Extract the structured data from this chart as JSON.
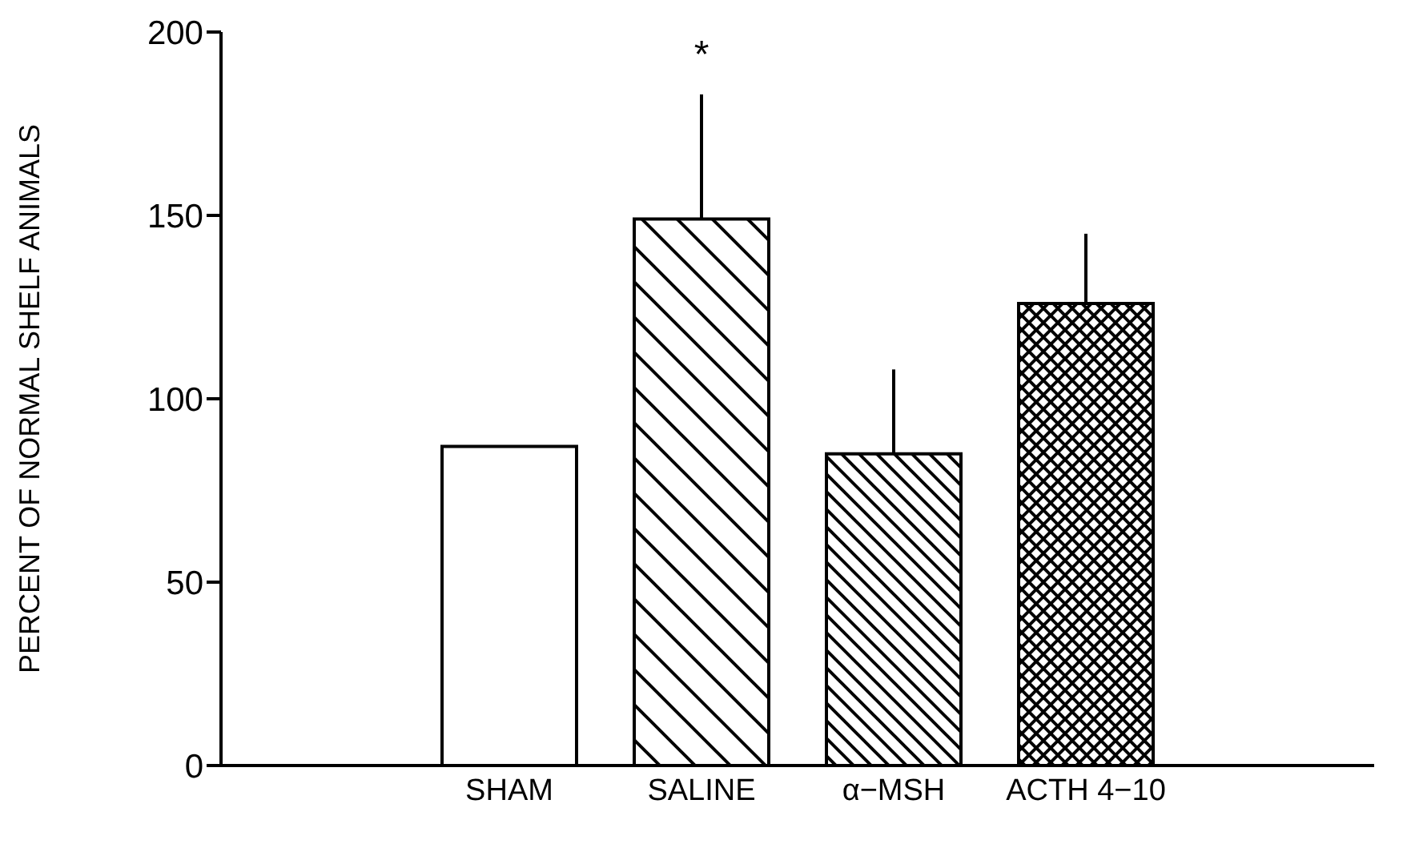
{
  "chart_data": {
    "type": "bar",
    "ylabel": "PERCENT OF NORMAL SHELF ANIMALS",
    "categories": [
      null,
      "SHAM",
      "SALINE",
      "α−MSH",
      "ACTH 4−10",
      null
    ],
    "values": [
      null,
      87,
      149,
      85,
      126,
      null
    ],
    "colors": [
      null,
      "#ffffff",
      "#000000",
      "#000000",
      "#000000",
      null
    ],
    "errors": [
      null,
      null,
      [
        149,
        183
      ],
      [
        85,
        108
      ],
      [
        126,
        145
      ],
      null
    ],
    "ylim": [
      0,
      200
    ],
    "yticks": [
      0,
      50,
      100,
      150,
      200
    ],
    "grid": false,
    "annotations": [
      "*"
    ]
  }
}
